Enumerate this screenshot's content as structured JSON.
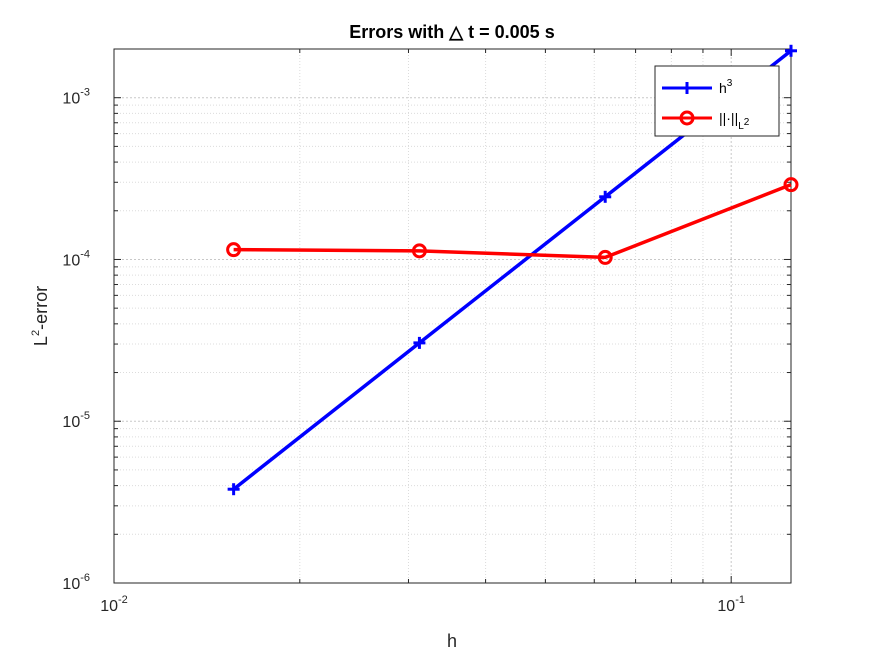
{
  "chart_data": {
    "type": "line",
    "title": "Errors with △ t = 0.005 s",
    "xlabel": "h",
    "ylabel_base": "L",
    "ylabel_sup": "2",
    "ylabel_rest": "-error",
    "xscale": "log",
    "yscale": "log",
    "xlim": [
      0.01,
      0.125
    ],
    "ylim": [
      1e-06,
      0.002
    ],
    "grid": true,
    "minor_grid": true,
    "legend_position": "top-right",
    "x_ticks": [
      {
        "value": 0.01,
        "base": "10",
        "exp": "-2"
      },
      {
        "value": 0.1,
        "base": "10",
        "exp": "-1"
      }
    ],
    "y_ticks": [
      {
        "value": 1e-06,
        "base": "10",
        "exp": "-6"
      },
      {
        "value": 1e-05,
        "base": "10",
        "exp": "-5"
      },
      {
        "value": 0.0001,
        "base": "10",
        "exp": "-4"
      },
      {
        "value": 0.001,
        "base": "10",
        "exp": "-3"
      }
    ],
    "x": [
      0.015625,
      0.03125,
      0.0625,
      0.125
    ],
    "series": [
      {
        "legend_base": "h",
        "legend_sup": "3",
        "color": "#0000ff",
        "marker": "plus",
        "values": [
          3.8e-06,
          3.05e-05,
          0.000244,
          0.00195
        ]
      },
      {
        "legend_base": "||·||",
        "legend_sub": "L",
        "legend_subsup": "2",
        "color": "#ff0000",
        "marker": "circle",
        "values": [
          0.000115,
          0.000113,
          0.000103,
          0.00029
        ]
      }
    ]
  }
}
